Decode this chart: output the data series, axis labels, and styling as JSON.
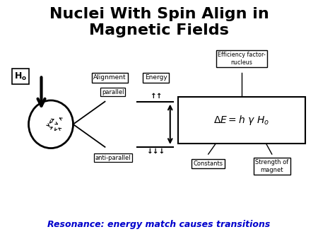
{
  "title": "Nuclei With Spin Align in\nMagnetic Fields",
  "title_fontsize": 16,
  "title_fontweight": "bold",
  "resonance_text": "Resonance: energy match causes transitions",
  "resonance_color": "#0000cc",
  "text_color": "#000000",
  "arrow_data": [
    [
      0.55,
      0.62,
      0.18,
      0.1
    ],
    [
      0.72,
      0.65,
      -0.12,
      0.08
    ],
    [
      0.48,
      0.55,
      -0.1,
      -0.14
    ],
    [
      0.65,
      0.52,
      0.14,
      -0.1
    ],
    [
      0.52,
      0.44,
      0.16,
      0.1
    ],
    [
      0.7,
      0.42,
      -0.13,
      0.12
    ],
    [
      0.6,
      0.38,
      -0.08,
      -0.15
    ],
    [
      0.45,
      0.48,
      0.1,
      -0.12
    ]
  ]
}
